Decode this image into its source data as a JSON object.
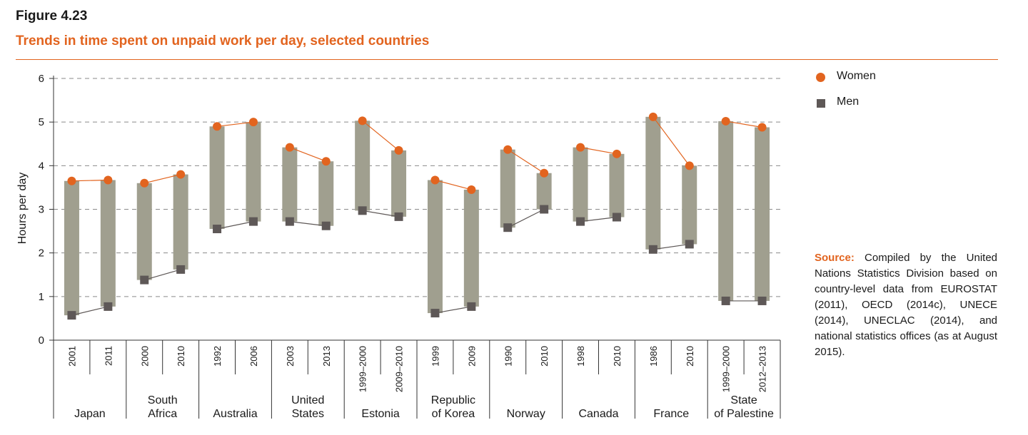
{
  "figure": {
    "label": "Figure 4.23",
    "title": "Trends in time spent on unpaid work per day, selected countries"
  },
  "legend": {
    "women": "Women",
    "men": "Men"
  },
  "source": {
    "label": "Source:",
    "text": "Compiled by the United Nations Statistics Division based on country-level data from EUROSTAT (2011), OECD (2014c), UNECE (2014), UNECLAC (2014), and national statistics offices (as at August 2015)."
  },
  "colors": {
    "women": "#e2641f",
    "men": "#5e5857",
    "bar": "#a09f8f",
    "title": "#e2641f"
  },
  "chart_data": {
    "type": "bar",
    "title": "Trends in time spent on unpaid work per day, selected countries",
    "xlabel": "",
    "ylabel": "Hours per day",
    "ylim": [
      0,
      6
    ],
    "yticks": [
      0,
      1,
      2,
      3,
      4,
      5,
      6
    ],
    "grid": "horizontal-dashed",
    "legend_position": "right",
    "groups": [
      {
        "country": "Japan",
        "points": [
          {
            "year": "2001",
            "women": 3.65,
            "men": 0.57
          },
          {
            "year": "2011",
            "women": 3.67,
            "men": 0.77
          }
        ]
      },
      {
        "country": "South Africa",
        "points": [
          {
            "year": "2000",
            "women": 3.6,
            "men": 1.38
          },
          {
            "year": "2010",
            "women": 3.8,
            "men": 1.62
          }
        ]
      },
      {
        "country": "Australia",
        "points": [
          {
            "year": "1992",
            "women": 4.9,
            "men": 2.55
          },
          {
            "year": "2006",
            "women": 5.0,
            "men": 2.72
          }
        ]
      },
      {
        "country": "United States",
        "points": [
          {
            "year": "2003",
            "women": 4.42,
            "men": 2.72
          },
          {
            "year": "2013",
            "women": 4.1,
            "men": 2.62
          }
        ]
      },
      {
        "country": "Estonia",
        "points": [
          {
            "year": "1999–2000",
            "women": 5.03,
            "men": 2.97
          },
          {
            "year": "2009–2010",
            "women": 4.35,
            "men": 2.83
          }
        ]
      },
      {
        "country": "Republic of Korea",
        "points": [
          {
            "year": "1999",
            "women": 3.67,
            "men": 0.62
          },
          {
            "year": "2009",
            "women": 3.45,
            "men": 0.77
          }
        ]
      },
      {
        "country": "Norway",
        "points": [
          {
            "year": "1990",
            "women": 4.37,
            "men": 2.58
          },
          {
            "year": "2010",
            "women": 3.83,
            "men": 3.0
          }
        ]
      },
      {
        "country": "Canada",
        "points": [
          {
            "year": "1998",
            "women": 4.42,
            "men": 2.72
          },
          {
            "year": "2010",
            "women": 4.27,
            "men": 2.82
          }
        ]
      },
      {
        "country": "France",
        "points": [
          {
            "year": "1986",
            "women": 5.12,
            "men": 2.08
          },
          {
            "year": "2010",
            "women": 4.0,
            "men": 2.2
          }
        ]
      },
      {
        "country": "State of Palestine",
        "points": [
          {
            "year": "1999–2000",
            "women": 5.02,
            "men": 0.9
          },
          {
            "year": "2012–2013",
            "women": 4.88,
            "men": 0.9
          }
        ]
      }
    ]
  }
}
